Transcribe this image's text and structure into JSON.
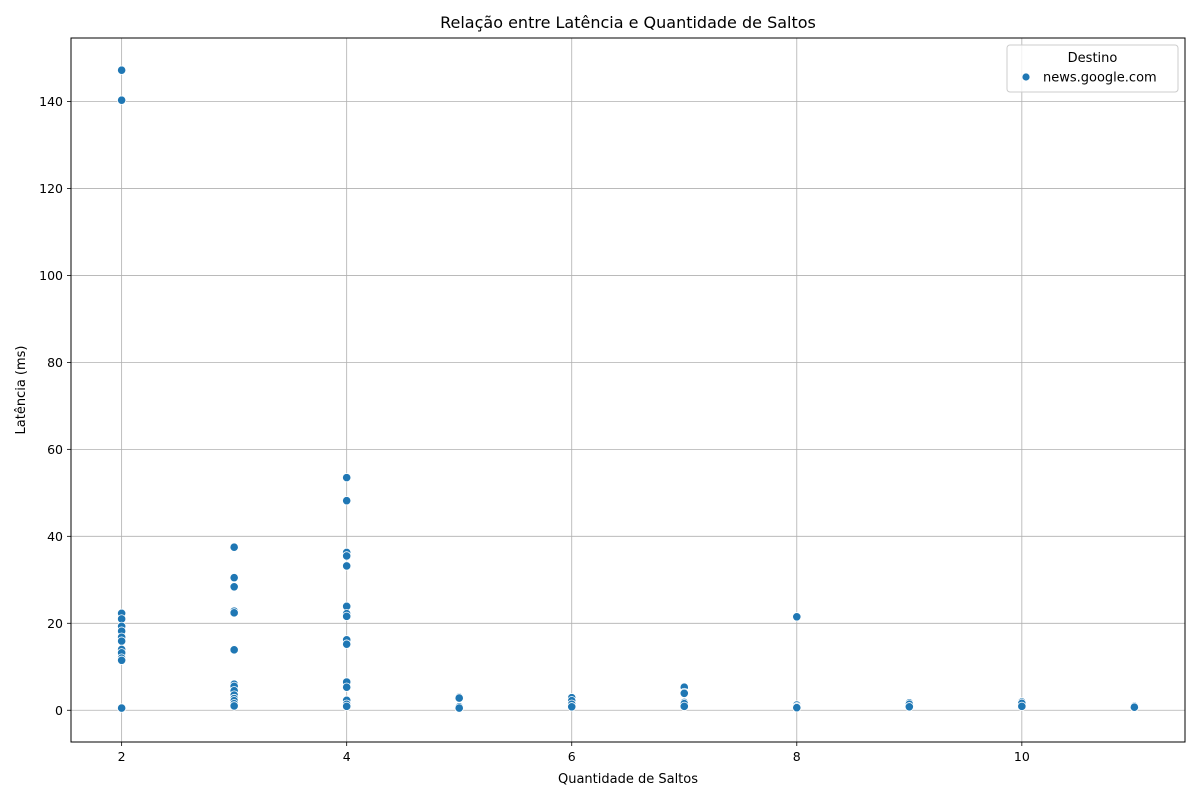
{
  "chart_data": {
    "type": "scatter",
    "title": "Relação entre Latência e Quantidade de Saltos",
    "xlabel": "Quantidade de Saltos",
    "ylabel": "Latência (ms)",
    "xlim": [
      1.55,
      11.45
    ],
    "ylim": [
      -7.3,
      154.6
    ],
    "xticks": [
      2,
      4,
      6,
      8,
      10
    ],
    "yticks": [
      0,
      20,
      40,
      60,
      80,
      100,
      120,
      140
    ],
    "grid": true,
    "legend": {
      "title": "Destino",
      "placement": "top-right"
    },
    "series": [
      {
        "name": "news.google.com",
        "color": "#1f77b4",
        "points": [
          [
            2,
            147.2
          ],
          [
            2,
            140.3
          ],
          [
            2,
            22.3
          ],
          [
            2,
            21.0
          ],
          [
            2,
            19.3
          ],
          [
            2,
            18.2
          ],
          [
            2,
            16.8
          ],
          [
            2,
            15.9
          ],
          [
            2,
            14.0
          ],
          [
            2,
            13.2
          ],
          [
            2,
            12.0
          ],
          [
            2,
            11.5
          ],
          [
            2,
            0.5
          ],
          [
            3,
            37.5
          ],
          [
            3,
            30.5
          ],
          [
            3,
            28.4
          ],
          [
            3,
            22.8
          ],
          [
            3,
            22.4
          ],
          [
            3,
            13.9
          ],
          [
            3,
            6.0
          ],
          [
            3,
            5.5
          ],
          [
            3,
            4.5
          ],
          [
            3,
            3.5
          ],
          [
            3,
            2.7
          ],
          [
            3,
            2.2
          ],
          [
            3,
            1.5
          ],
          [
            3,
            1.0
          ],
          [
            4,
            53.5
          ],
          [
            4,
            48.2
          ],
          [
            4,
            36.3
          ],
          [
            4,
            35.5
          ],
          [
            4,
            33.2
          ],
          [
            4,
            23.9
          ],
          [
            4,
            22.2
          ],
          [
            4,
            21.6
          ],
          [
            4,
            16.2
          ],
          [
            4,
            15.2
          ],
          [
            4,
            6.5
          ],
          [
            4,
            5.3
          ],
          [
            4,
            2.3
          ],
          [
            4,
            1.4
          ],
          [
            4,
            0.9
          ],
          [
            5,
            3.0
          ],
          [
            5,
            2.8
          ],
          [
            5,
            0.8
          ],
          [
            5,
            0.5
          ],
          [
            6,
            2.9
          ],
          [
            6,
            2.2
          ],
          [
            6,
            1.4
          ],
          [
            6,
            0.8
          ],
          [
            7,
            5.3
          ],
          [
            7,
            4.1
          ],
          [
            7,
            3.9
          ],
          [
            7,
            1.8
          ],
          [
            7,
            1.5
          ],
          [
            7,
            0.9
          ],
          [
            8,
            21.5
          ],
          [
            8,
            1.2
          ],
          [
            8,
            0.8
          ],
          [
            8,
            0.6
          ],
          [
            9,
            1.7
          ],
          [
            9,
            1.4
          ],
          [
            9,
            0.8
          ],
          [
            10,
            1.9
          ],
          [
            10,
            1.6
          ],
          [
            10,
            0.9
          ],
          [
            11,
            0.9
          ],
          [
            11,
            0.7
          ]
        ]
      }
    ]
  }
}
